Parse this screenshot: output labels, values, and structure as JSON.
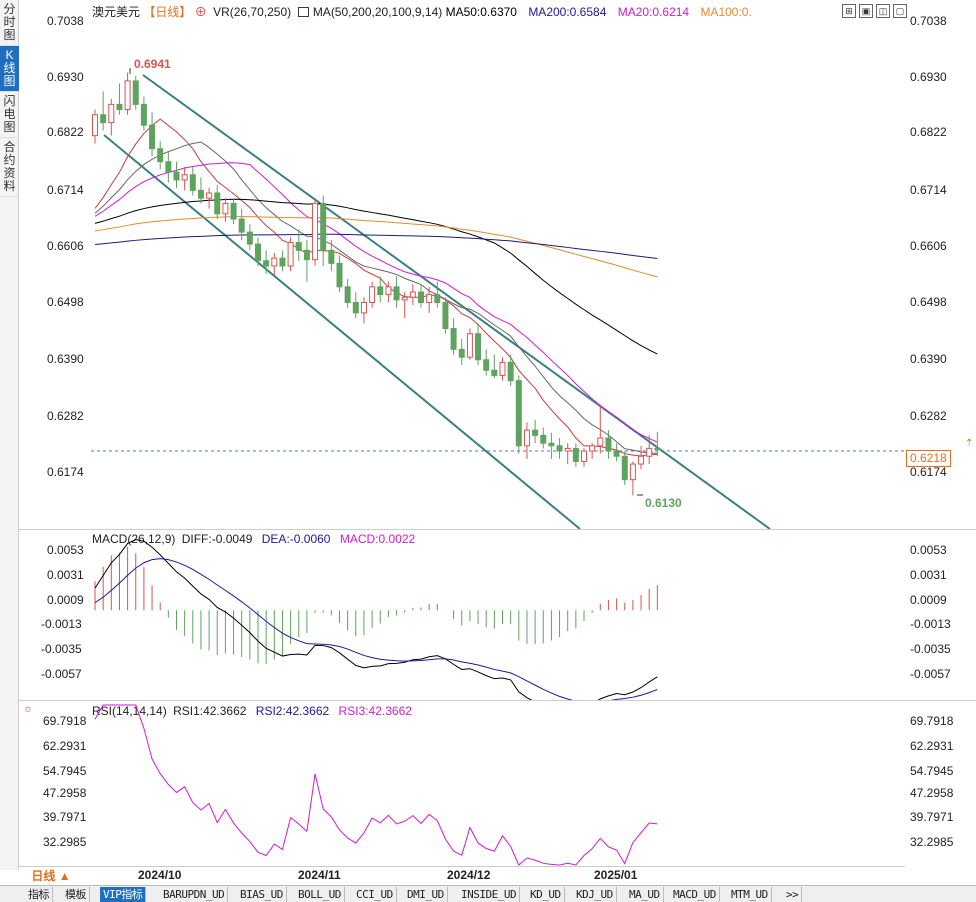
{
  "side_tabs": [
    "分时图",
    "K线图",
    "闪电图",
    "合约资料"
  ],
  "header": {
    "name": "澳元美元",
    "period": "【日线】",
    "add_icon": "⊕",
    "vr": "VR(26,70,250)",
    "ma_label": "MA(50,200,20,100,9,14)",
    "ma50": "MA50:0.6370",
    "ma200": "MA200:0.6584",
    "ma20": "MA20:0.6214",
    "ma100": "MA100:0."
  },
  "colors": {
    "up": "#d9534f",
    "down": "#5fa35f",
    "ma50": "#000000",
    "ma200": "#1a1a7a",
    "ma20": "#d21ad2",
    "ma100": "#e8892a",
    "ma9": "#c83c3c",
    "ma14": "#666666",
    "channel": "#3a8080"
  },
  "price_axis": [
    "0.7038",
    "0.6930",
    "0.6822",
    "0.6714",
    "0.6606",
    "0.6498",
    "0.6390",
    "0.6282",
    "0.6174"
  ],
  "current_price": "0.6218",
  "high_label": "0.6941",
  "low_label": "0.6130",
  "macd": {
    "header": "MACD(26,12,9)",
    "diff": "DIFF:-0.0049",
    "dea": "DEA:-0.0060",
    "macd": "MACD:0.0022",
    "axis": [
      "0.0053",
      "0.0031",
      "0.0009",
      "-0.0013",
      "-0.0035",
      "-0.0057"
    ]
  },
  "rsi": {
    "header": "RSI(14,14,14)",
    "rsi1": "RSI1:42.3662",
    "rsi2": "RSI2:42.3662",
    "rsi3": "RSI3:42.3662",
    "axis": [
      "69.7918",
      "62.2931",
      "54.7945",
      "47.2958",
      "39.7971",
      "32.2985"
    ]
  },
  "period_button": "日线 ▲",
  "dates": [
    "2024/10",
    "2024/11",
    "2024/12",
    "2025/01"
  ],
  "bottom_tabs": [
    "指标",
    "模板",
    "VIP指标",
    "BARUPDN_UD",
    "BIAS_UD",
    "BOLL_UD",
    "CCI_UD",
    "DMI_UD",
    "INSIDE_UD",
    "KD_UD",
    "KDJ_UD",
    "MA_UD",
    "MACD_UD",
    "MTM_UD",
    ">>"
  ],
  "candles": [
    [
      0.682,
      0.687,
      0.6805,
      0.686
    ],
    [
      0.686,
      0.6905,
      0.683,
      0.6845
    ],
    [
      0.6845,
      0.689,
      0.682,
      0.688
    ],
    [
      0.688,
      0.692,
      0.686,
      0.687
    ],
    [
      0.687,
      0.6941,
      0.686,
      0.6925
    ],
    [
      0.6925,
      0.6935,
      0.687,
      0.688
    ],
    [
      0.688,
      0.6895,
      0.683,
      0.684
    ],
    [
      0.684,
      0.6865,
      0.678,
      0.6795
    ],
    [
      0.6795,
      0.681,
      0.6755,
      0.677
    ],
    [
      0.677,
      0.679,
      0.673,
      0.675
    ],
    [
      0.675,
      0.677,
      0.672,
      0.6735
    ],
    [
      0.6735,
      0.676,
      0.6715,
      0.6745
    ],
    [
      0.6745,
      0.676,
      0.6705,
      0.6715
    ],
    [
      0.6715,
      0.674,
      0.669,
      0.67
    ],
    [
      0.67,
      0.672,
      0.668,
      0.671
    ],
    [
      0.671,
      0.6725,
      0.666,
      0.667
    ],
    [
      0.667,
      0.67,
      0.6655,
      0.669
    ],
    [
      0.669,
      0.67,
      0.665,
      0.666
    ],
    [
      0.666,
      0.668,
      0.662,
      0.6635
    ],
    [
      0.6635,
      0.665,
      0.66,
      0.6612
    ],
    [
      0.6612,
      0.6625,
      0.657,
      0.658
    ],
    [
      0.658,
      0.66,
      0.6555,
      0.657
    ],
    [
      0.657,
      0.6595,
      0.655,
      0.6585
    ],
    [
      0.6585,
      0.66,
      0.656,
      0.657
    ],
    [
      0.657,
      0.6625,
      0.656,
      0.6615
    ],
    [
      0.6615,
      0.664,
      0.658,
      0.66
    ],
    [
      0.66,
      0.662,
      0.654,
      0.6582
    ],
    [
      0.6582,
      0.67,
      0.657,
      0.669
    ],
    [
      0.669,
      0.6705,
      0.657,
      0.66
    ],
    [
      0.66,
      0.662,
      0.656,
      0.6575
    ],
    [
      0.6575,
      0.659,
      0.652,
      0.653
    ],
    [
      0.653,
      0.6545,
      0.649,
      0.65
    ],
    [
      0.65,
      0.652,
      0.647,
      0.648
    ],
    [
      0.648,
      0.651,
      0.646,
      0.65
    ],
    [
      0.65,
      0.654,
      0.649,
      0.653
    ],
    [
      0.653,
      0.655,
      0.65,
      0.6515
    ],
    [
      0.6515,
      0.654,
      0.65,
      0.653
    ],
    [
      0.653,
      0.655,
      0.649,
      0.6505
    ],
    [
      0.6505,
      0.652,
      0.647,
      0.651
    ],
    [
      0.651,
      0.6535,
      0.6495,
      0.652
    ],
    [
      0.652,
      0.6535,
      0.649,
      0.65
    ],
    [
      0.65,
      0.653,
      0.648,
      0.6515
    ],
    [
      0.6515,
      0.654,
      0.649,
      0.65
    ],
    [
      0.65,
      0.651,
      0.644,
      0.645
    ],
    [
      0.645,
      0.647,
      0.64,
      0.641
    ],
    [
      0.641,
      0.643,
      0.638,
      0.6395
    ],
    [
      0.6395,
      0.645,
      0.639,
      0.644
    ],
    [
      0.644,
      0.646,
      0.638,
      0.639
    ],
    [
      0.639,
      0.641,
      0.636,
      0.637
    ],
    [
      0.637,
      0.64,
      0.6355,
      0.636
    ],
    [
      0.636,
      0.6395,
      0.635,
      0.6385
    ],
    [
      0.6385,
      0.64,
      0.634,
      0.635
    ],
    [
      0.635,
      0.636,
      0.621,
      0.6225
    ],
    [
      0.6225,
      0.627,
      0.62,
      0.6255
    ],
    [
      0.6255,
      0.6275,
      0.623,
      0.6245
    ],
    [
      0.6245,
      0.626,
      0.622,
      0.623
    ],
    [
      0.623,
      0.625,
      0.62,
      0.6225
    ],
    [
      0.6225,
      0.624,
      0.62,
      0.6215
    ],
    [
      0.6215,
      0.623,
      0.619,
      0.622
    ],
    [
      0.622,
      0.623,
      0.6185,
      0.6195
    ],
    [
      0.6195,
      0.622,
      0.6185,
      0.6215
    ],
    [
      0.6215,
      0.623,
      0.62,
      0.6225
    ],
    [
      0.6225,
      0.63,
      0.621,
      0.624
    ],
    [
      0.624,
      0.6255,
      0.62,
      0.6215
    ],
    [
      0.6215,
      0.623,
      0.6195,
      0.6205
    ],
    [
      0.6205,
      0.6215,
      0.615,
      0.616
    ],
    [
      0.616,
      0.6195,
      0.613,
      0.619
    ],
    [
      0.619,
      0.6225,
      0.618,
      0.6205
    ],
    [
      0.6205,
      0.6245,
      0.619,
      0.622
    ],
    [
      0.622,
      0.6252,
      0.6205,
      0.6218
    ]
  ]
}
